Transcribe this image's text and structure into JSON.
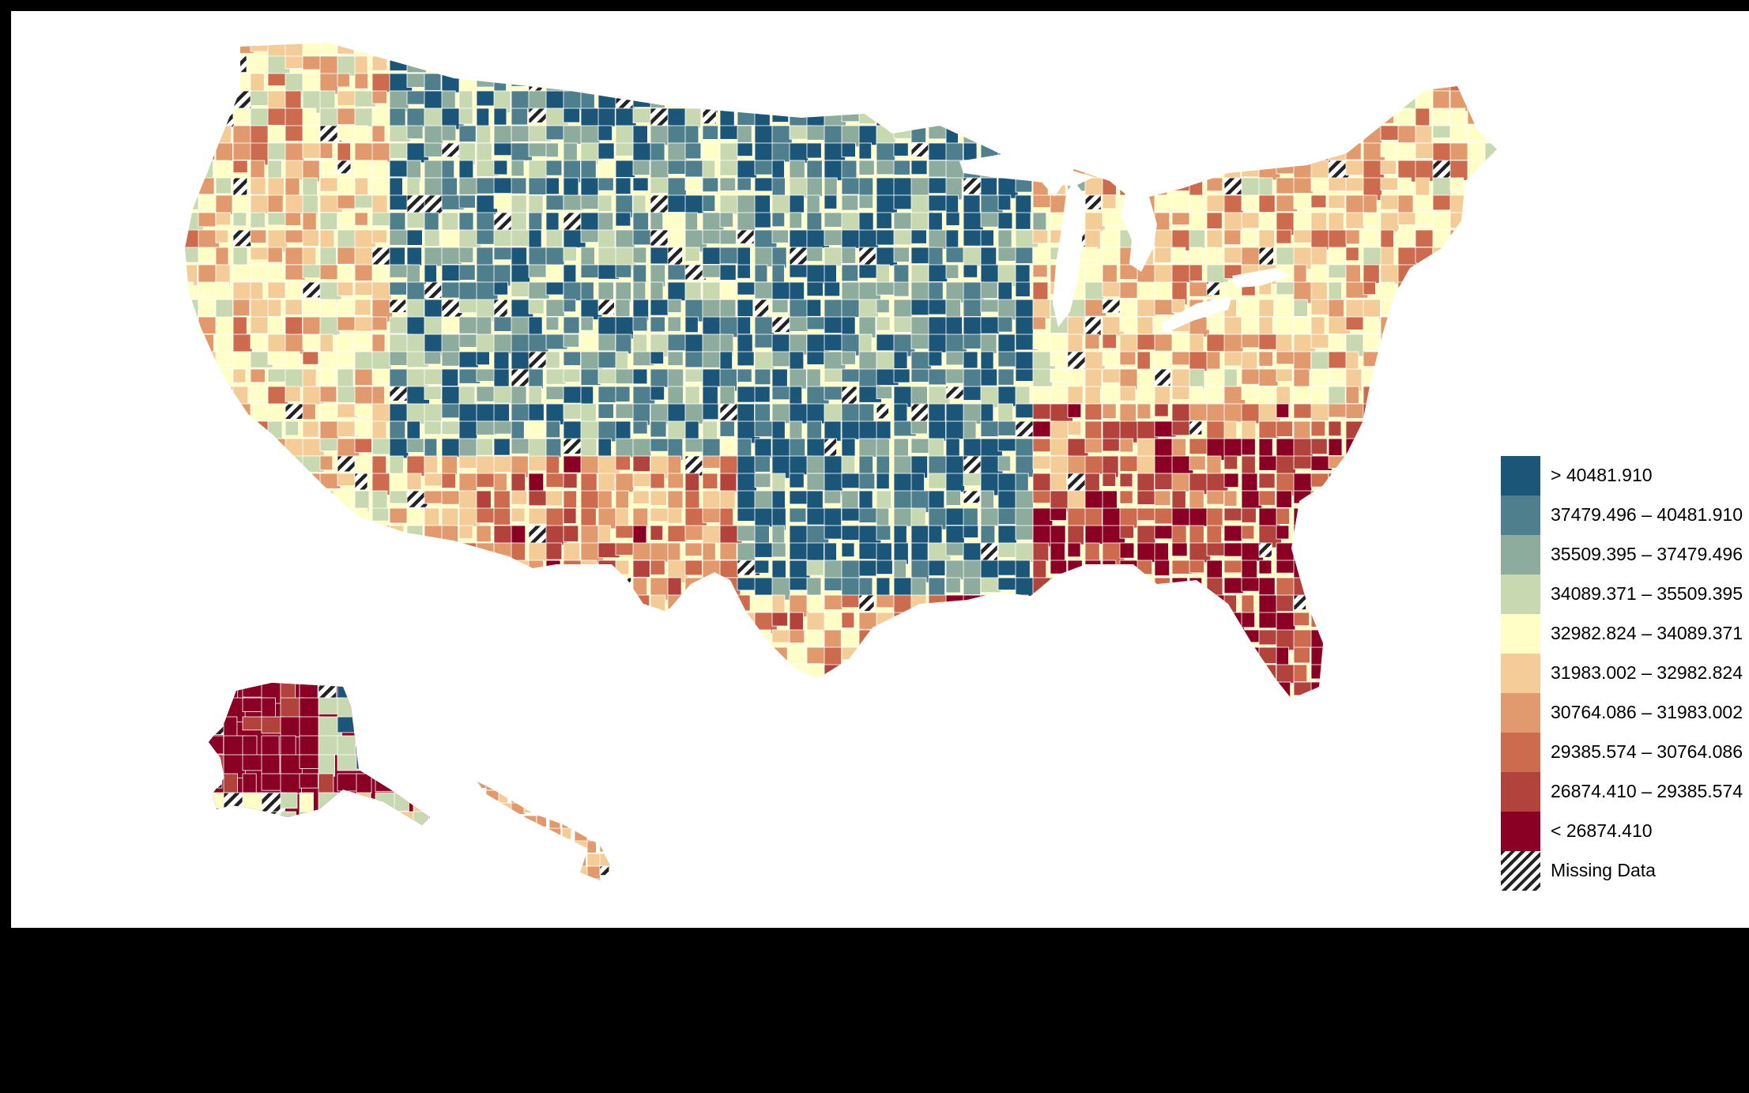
{
  "map": {
    "type": "choropleth",
    "region": "United States counties",
    "palette": [
      "#1b5577",
      "#4f7f8d",
      "#8eac9d",
      "#c8d9b2",
      "#fffec6",
      "#f3cc98",
      "#e19a6d",
      "#cc6b4e",
      "#b1423c",
      "#8a0025"
    ],
    "missing_color": "#ffffff",
    "stroke_color": "#ffffff"
  },
  "legend": {
    "items": [
      {
        "label": "> 40481.910",
        "color": "#1b5577"
      },
      {
        "label": "37479.496 – 40481.910",
        "color": "#4f7f8d"
      },
      {
        "label": "35509.395 – 37479.496",
        "color": "#8eac9d"
      },
      {
        "label": "34089.371 – 35509.395",
        "color": "#c8d9b2"
      },
      {
        "label": "32982.824 – 34089.371",
        "color": "#fffec6"
      },
      {
        "label": "31983.002 – 32982.824",
        "color": "#f3cc98"
      },
      {
        "label": "30764.086 – 31983.002",
        "color": "#e19a6d"
      },
      {
        "label": "29385.574 – 30764.086",
        "color": "#cc6b4e"
      },
      {
        "label": "26874.410 – 29385.574",
        "color": "#b1423c"
      },
      {
        "label": "< 26874.410",
        "color": "#8a0025"
      },
      {
        "label": "Missing Data",
        "color": "hatch"
      }
    ]
  }
}
